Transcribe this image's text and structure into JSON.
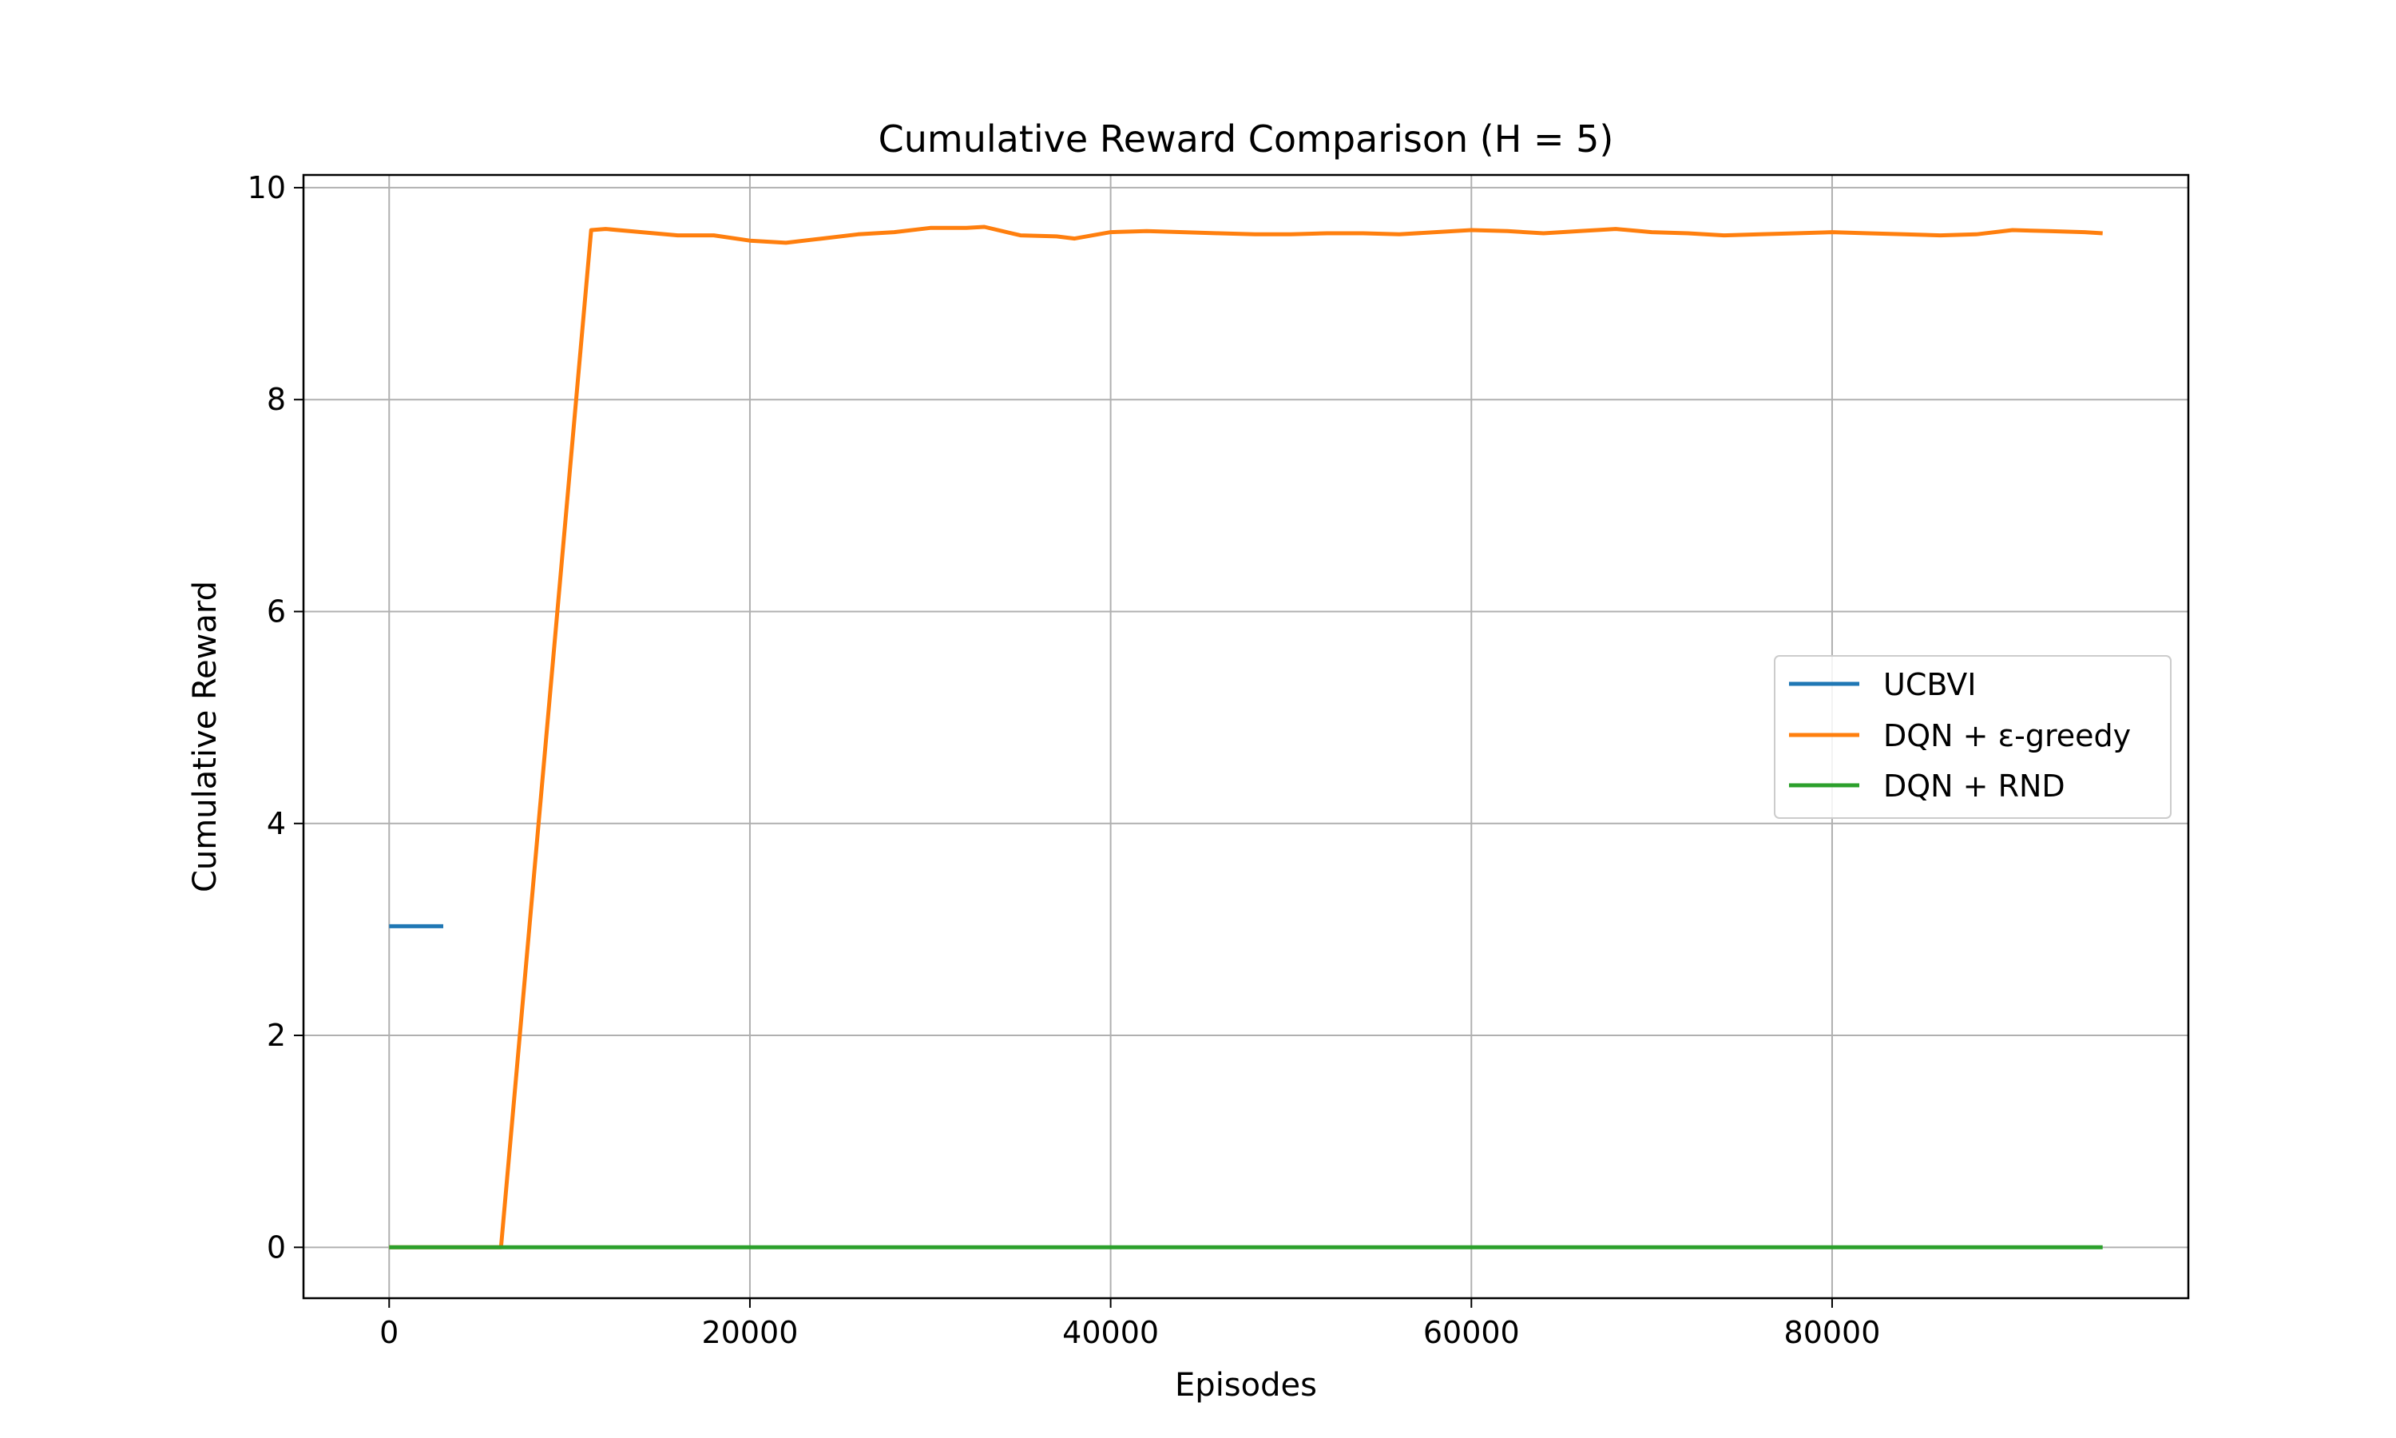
{
  "chart_data": {
    "type": "line",
    "title": "Cumulative Reward Comparison (H = 5)",
    "xlabel": "Episodes",
    "ylabel": "Cumulative Reward",
    "xlim": [
      -4750,
      99750
    ],
    "ylim": [
      -0.48,
      10.12
    ],
    "xticks": [
      0,
      20000,
      40000,
      60000,
      80000
    ],
    "yticks": [
      0,
      2,
      4,
      6,
      8,
      10
    ],
    "grid": true,
    "legend_position": "center-right",
    "series": [
      {
        "name": "UCBVI",
        "color": "#1f77b4",
        "x": [
          0,
          3000
        ],
        "y": [
          3.03,
          3.03
        ]
      },
      {
        "name": "DQN + ε-greedy",
        "color": "#ff7f0e",
        "x": [
          0,
          6200,
          11200,
          12000,
          14000,
          16000,
          18000,
          20000,
          22000,
          24000,
          26000,
          28000,
          30000,
          32000,
          33000,
          35000,
          37000,
          38000,
          40000,
          42000,
          44000,
          46000,
          48000,
          50000,
          52000,
          54000,
          56000,
          58000,
          60000,
          62000,
          64000,
          66000,
          68000,
          70000,
          72000,
          74000,
          76000,
          78000,
          80000,
          82000,
          84000,
          86000,
          88000,
          90000,
          92000,
          94000,
          95000
        ],
        "y": [
          0,
          0,
          9.6,
          9.61,
          9.58,
          9.55,
          9.55,
          9.5,
          9.48,
          9.52,
          9.56,
          9.58,
          9.62,
          9.62,
          9.63,
          9.55,
          9.54,
          9.52,
          9.58,
          9.59,
          9.58,
          9.57,
          9.56,
          9.56,
          9.57,
          9.57,
          9.56,
          9.58,
          9.6,
          9.59,
          9.57,
          9.59,
          9.61,
          9.58,
          9.57,
          9.55,
          9.56,
          9.57,
          9.58,
          9.57,
          9.56,
          9.55,
          9.56,
          9.6,
          9.59,
          9.58,
          9.57
        ]
      },
      {
        "name": "DQN + RND",
        "color": "#2ca02c",
        "x": [
          0,
          95000
        ],
        "y": [
          0,
          0
        ]
      }
    ]
  }
}
